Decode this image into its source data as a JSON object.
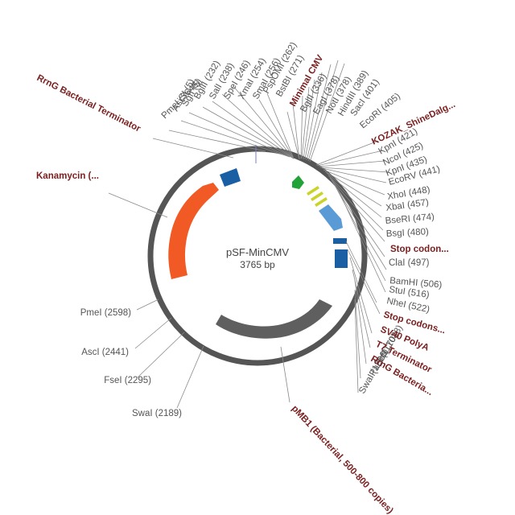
{
  "plasmid": {
    "name": "pSF-MinCMV",
    "size_label": "3765 bp",
    "length_bp": 3765
  },
  "colors": {
    "backbone": "#555555",
    "feature_label": "#7a1f1f",
    "site_label": "#555555",
    "kanamycin": "#f15a24",
    "terminator": "#1a5fa3",
    "origin": "#5f5f5f",
    "minimal_cmv": "#22a33a",
    "kozak": "#c9d42a",
    "stop_codons": "#5b9bd5",
    "sv40": "#1a5fa3"
  },
  "restriction_sites": [
    {
      "name": "SmaI",
      "position": 256,
      "label": "SmaI (256)"
    },
    {
      "name": "XmaI",
      "position": 254,
      "label": "XmaI (254)"
    },
    {
      "name": "SpeI",
      "position": 246,
      "label": "SpeI (246)"
    },
    {
      "name": "SalI",
      "position": 238,
      "label": "SalI (238)"
    },
    {
      "name": "BglII",
      "position": 232,
      "label": "BglII (232)"
    },
    {
      "name": "SgfI",
      "position": 5,
      "label": "SgfI (5)"
    },
    {
      "name": "AsiSI",
      "position": 5,
      "label": "AsiSI (5)"
    },
    {
      "name": "PmeI",
      "position": 3646,
      "label": "PmeI (3646)"
    },
    {
      "name": "PspOMI",
      "position": 262,
      "label": "PspOMI (262)"
    },
    {
      "name": "BstBI",
      "position": 271,
      "label": "BstBI (271)"
    },
    {
      "name": "BglII",
      "position": 336,
      "label": "BglII (336)"
    },
    {
      "name": "EagI",
      "position": 378,
      "label": "EagI (378)"
    },
    {
      "name": "NotI",
      "position": 378,
      "label": "NotI (378)"
    },
    {
      "name": "HindIII",
      "position": 389,
      "label": "HindIII (389)"
    },
    {
      "name": "SacI",
      "position": 401,
      "label": "SacI (401)"
    },
    {
      "name": "EcoRI",
      "position": 405,
      "label": "EcoRI (405)"
    },
    {
      "name": "KpnI",
      "position": 421,
      "label": "KpnI (421)"
    },
    {
      "name": "NcoI",
      "position": 425,
      "label": "NcoI (425)"
    },
    {
      "name": "KpnI",
      "position": 435,
      "label": "KpnI (435)"
    },
    {
      "name": "EcoRV",
      "position": 441,
      "label": "EcoRV (441)"
    },
    {
      "name": "XhoI",
      "position": 448,
      "label": "XhoI (448)"
    },
    {
      "name": "XbaI",
      "position": 457,
      "label": "XbaI (457)"
    },
    {
      "name": "BseRI",
      "position": 474,
      "label": "BseRI (474)"
    },
    {
      "name": "BsgI",
      "position": 480,
      "label": "BsgI (480)"
    },
    {
      "name": "ClaI",
      "position": 497,
      "label": "ClaI (497)"
    },
    {
      "name": "BamHI",
      "position": 506,
      "label": "BamHI (506)"
    },
    {
      "name": "StuI",
      "position": 516,
      "label": "StuI (516)"
    },
    {
      "name": "NheI",
      "position": 522,
      "label": "NheI (522)"
    },
    {
      "name": "SbfI",
      "position": 1038,
      "label": "SbfI (1038)"
    },
    {
      "name": "PacI",
      "position": 1170,
      "label": "PacI (1170)"
    },
    {
      "name": "SwaI",
      "position": 1296,
      "label": "SwaI (1296)"
    },
    {
      "name": "PmeI",
      "position": 2598,
      "label": "PmeI (2598)"
    },
    {
      "name": "AscI",
      "position": 2441,
      "label": "AscI (2441)"
    },
    {
      "name": "FseI",
      "position": 2295,
      "label": "FseI (2295)"
    },
    {
      "name": "SwaI",
      "position": 2189,
      "label": "SwaI (2189)"
    }
  ],
  "features": {
    "rrng_left": "RrnG Bacterial Terminator",
    "kanamycin": "Kanamycin (...",
    "minimal_cmv": "Minimal CMV",
    "kozak": "KOZAK_ShineDalg...",
    "stop_codons_1": "Stop codon...",
    "stop_codons_2": "Stop codons...",
    "sv40": "SV40 PolyA",
    "t7": "T7 Terminator",
    "rrng_right": "RrnG Bacteria...",
    "pmb1": "pMB1 (Bacterial, 500-800 copies)"
  }
}
